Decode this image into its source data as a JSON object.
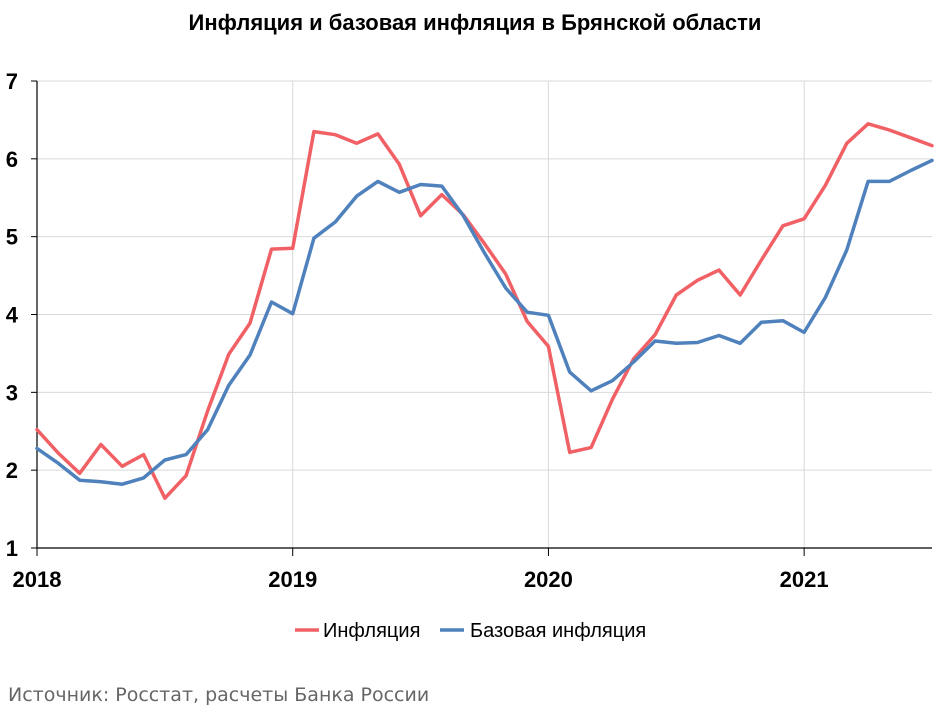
{
  "chart_data": {
    "type": "line",
    "title": "Инфляция и базовая инфляция в Брянской области",
    "xlabel": "",
    "ylabel": "",
    "xlim": [
      2018.0,
      2021.5
    ],
    "ylim": [
      1,
      7
    ],
    "yticks": [
      1,
      2,
      3,
      4,
      5,
      6,
      7
    ],
    "xticks": [
      2018,
      2019,
      2020,
      2021
    ],
    "grid": "vertical at year boundaries, horizontal major",
    "legend": "bottom-center",
    "x": [
      2018.0,
      2018.083,
      2018.167,
      2018.25,
      2018.333,
      2018.417,
      2018.5,
      2018.583,
      2018.667,
      2018.75,
      2018.833,
      2018.917,
      2019.0,
      2019.083,
      2019.167,
      2019.25,
      2019.333,
      2019.417,
      2019.5,
      2019.583,
      2019.667,
      2019.75,
      2019.833,
      2019.917,
      2020.0,
      2020.083,
      2020.167,
      2020.25,
      2020.333,
      2020.417,
      2020.5,
      2020.583,
      2020.667,
      2020.75,
      2020.833,
      2020.917,
      2021.0,
      2021.083,
      2021.167,
      2021.25,
      2021.333,
      2021.417,
      2021.5
    ],
    "series": [
      {
        "name": "Инфляция",
        "color": "#f06065",
        "values": [
          2.52,
          2.22,
          1.96,
          2.33,
          2.05,
          2.2,
          1.64,
          1.93,
          2.76,
          3.49,
          3.89,
          4.84,
          4.85,
          6.35,
          6.31,
          6.2,
          6.32,
          5.93,
          5.27,
          5.54,
          5.28,
          4.91,
          4.52,
          3.91,
          3.59,
          2.23,
          2.29,
          2.91,
          3.43,
          3.74,
          4.25,
          4.44,
          4.57,
          4.25,
          4.7,
          5.14,
          5.23,
          5.66,
          6.2,
          6.45,
          6.37,
          6.27,
          6.17
        ]
      },
      {
        "name": "Базовая инфляция",
        "color": "#4f81bd",
        "values": [
          2.28,
          2.09,
          1.87,
          1.85,
          1.82,
          1.9,
          2.13,
          2.2,
          2.52,
          3.09,
          3.48,
          4.16,
          4.01,
          4.98,
          5.19,
          5.52,
          5.71,
          5.57,
          5.67,
          5.65,
          5.27,
          4.79,
          4.34,
          4.03,
          3.99,
          3.26,
          3.02,
          3.15,
          3.39,
          3.66,
          3.63,
          3.64,
          3.73,
          3.63,
          3.9,
          3.92,
          3.77,
          4.22,
          4.83,
          5.71,
          5.71,
          5.85,
          5.98
        ]
      }
    ]
  },
  "source_note": "Источник: Росстат, расчеты Банка России"
}
